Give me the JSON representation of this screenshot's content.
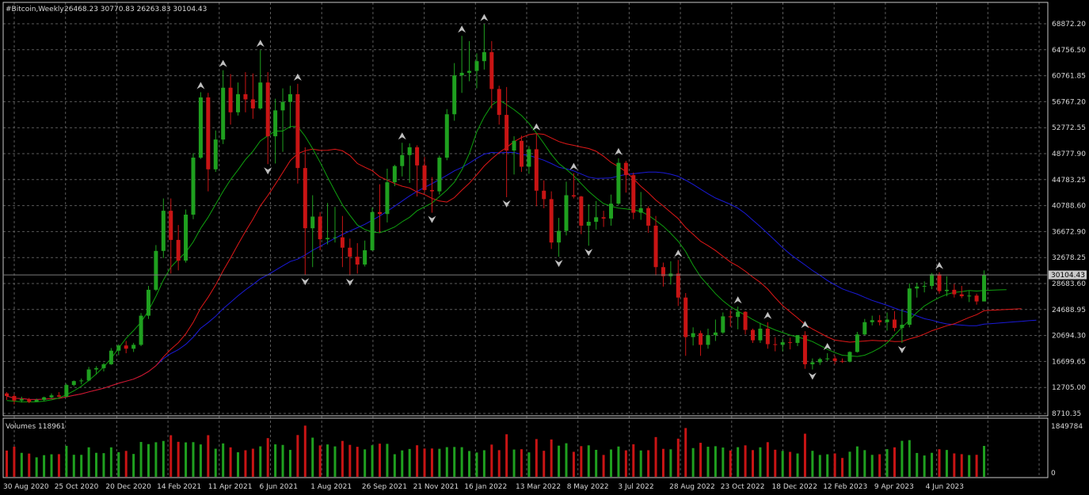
{
  "header": {
    "symbol_label": "#Bitcoin,Weekly",
    "ohlc_text": "26468.23 30770.83 26263.83 30104.43"
  },
  "volume_header": {
    "label": "Volumes 118961"
  },
  "current_price_tag": "30104.43",
  "colors": {
    "background": "#000000",
    "grid": "#5a5a5a",
    "frame": "#c8c8c8",
    "bull": "#1fa01f",
    "bear": "#c81414",
    "ma_fast": "#0fa00f",
    "ma_mid": "#e01818",
    "ma_slow": "#1a1ad8",
    "fractal": "#c0c0c0",
    "text": "#d8d8d8"
  },
  "chart_data": [
    {
      "type": "candlestick",
      "title": "#Bitcoin,Weekly",
      "y_ticks": [
        "68872.20",
        "64756.50",
        "60761.85",
        "56767.20",
        "52772.55",
        "48777.90",
        "44783.25",
        "40788.60",
        "36672.90",
        "32678.25",
        "28683.60",
        "24688.95",
        "20694.30",
        "16699.65",
        "12705.00",
        "8710.35"
      ],
      "x_ticks": [
        "30 Aug 2020",
        "25 Oct 2020",
        "20 Dec 2020",
        "14 Feb 2021",
        "11 Apr 2021",
        "6 Jun 2021",
        "1 Aug 2021",
        "26 Sep 2021",
        "21 Nov 2021",
        "16 Jan 2022",
        "13 Mar 2022",
        "8 May 2022",
        "3 Jul 2022",
        "28 Aug 2022",
        "23 Oct 2022",
        "18 Dec 2022",
        "12 Feb 2023",
        "9 Apr 2023",
        "4 Jun 2023"
      ],
      "ylim": [
        8710.35,
        68872.2
      ],
      "grid": true,
      "ohlc_series": [
        [
          11800,
          12000,
          10800,
          11400
        ],
        [
          11400,
          11700,
          10100,
          10700
        ],
        [
          10700,
          11300,
          10400,
          10900
        ],
        [
          10900,
          11100,
          10300,
          10500
        ],
        [
          10500,
          11000,
          10500,
          10800
        ],
        [
          10800,
          11300,
          10600,
          11200
        ],
        [
          11200,
          11800,
          11000,
          11500
        ],
        [
          11500,
          12000,
          11200,
          11300
        ],
        [
          11300,
          13300,
          11200,
          13100
        ],
        [
          13100,
          13800,
          12900,
          13700
        ],
        [
          13700,
          14100,
          13200,
          13800
        ],
        [
          13800,
          15900,
          13700,
          15500
        ],
        [
          15500,
          16000,
          14700,
          15700
        ],
        [
          15700,
          16500,
          15200,
          16300
        ],
        [
          16300,
          18800,
          16200,
          18400
        ],
        [
          18400,
          19400,
          17700,
          19200
        ],
        [
          19200,
          19900,
          18000,
          18700
        ],
        [
          18700,
          19600,
          18200,
          19300
        ],
        [
          19300,
          24200,
          19100,
          23800
        ],
        [
          23800,
          28400,
          23300,
          27800
        ],
        [
          27800,
          34700,
          27600,
          33800
        ],
        [
          33800,
          41900,
          32700,
          40000
        ],
        [
          40000,
          41900,
          30300,
          35500
        ],
        [
          35500,
          37800,
          30800,
          32300
        ],
        [
          32300,
          40200,
          32000,
          39400
        ],
        [
          39400,
          48900,
          38700,
          48200
        ],
        [
          48200,
          58300,
          48000,
          57500
        ],
        [
          57500,
          58200,
          43000,
          46400
        ],
        [
          46400,
          52400,
          46000,
          51000
        ],
        [
          51000,
          61700,
          50300,
          59000
        ],
        [
          59000,
          61100,
          53300,
          55200
        ],
        [
          55200,
          59800,
          54700,
          58000
        ],
        [
          58000,
          61400,
          55200,
          57200
        ],
        [
          57200,
          61200,
          54200,
          55800
        ],
        [
          55800,
          64800,
          55600,
          59800
        ],
        [
          59800,
          61400,
          47200,
          51500
        ],
        [
          51500,
          57300,
          47300,
          55500
        ],
        [
          55500,
          58900,
          49100,
          56800
        ],
        [
          56800,
          59300,
          52800,
          58000
        ],
        [
          58000,
          59600,
          44200,
          46600
        ],
        [
          46600,
          49800,
          30100,
          37300
        ],
        [
          37300,
          42400,
          31300,
          39100
        ],
        [
          39100,
          39800,
          33900,
          35600
        ],
        [
          35600,
          41200,
          34800,
          35800
        ],
        [
          35800,
          40600,
          35100,
          35900
        ],
        [
          35900,
          39200,
          31300,
          34300
        ],
        [
          34300,
          35700,
          30000,
          32900
        ],
        [
          32900,
          35000,
          30300,
          31700
        ],
        [
          31700,
          35400,
          31400,
          33900
        ],
        [
          33900,
          40500,
          33800,
          39800
        ],
        [
          39800,
          44100,
          36600,
          39500
        ],
        [
          39500,
          46500,
          38200,
          44400
        ],
        [
          44400,
          47100,
          43800,
          46900
        ],
        [
          46900,
          50500,
          45300,
          48600
        ],
        [
          48600,
          50400,
          44300,
          49800
        ],
        [
          49800,
          50100,
          42200,
          47000
        ],
        [
          47000,
          48300,
          42800,
          43200
        ],
        [
          43200,
          45200,
          39700,
          43000
        ],
        [
          43000,
          48500,
          42500,
          48200
        ],
        [
          48200,
          55700,
          47800,
          54900
        ],
        [
          54900,
          62800,
          53900,
          60900
        ],
        [
          60900,
          67000,
          58200,
          61300
        ],
        [
          61300,
          66200,
          60000,
          61600
        ],
        [
          61600,
          64300,
          58900,
          63100
        ],
        [
          63100,
          68800,
          61800,
          64500
        ],
        [
          64500,
          66200,
          55800,
          58800
        ],
        [
          58800,
          59300,
          53300,
          54800
        ],
        [
          54800,
          59100,
          42100,
          49300
        ],
        [
          49300,
          51500,
          45600,
          50800
        ],
        [
          50800,
          51600,
          46000,
          46800
        ],
        [
          46800,
          50000,
          45700,
          49500
        ],
        [
          49500,
          51900,
          40700,
          43100
        ],
        [
          43100,
          44700,
          40400,
          41800
        ],
        [
          41800,
          43000,
          34100,
          35100
        ],
        [
          35100,
          38900,
          32900,
          36900
        ],
        [
          36900,
          44500,
          36200,
          42400
        ],
        [
          42400,
          45800,
          41900,
          42200
        ],
        [
          42200,
          42300,
          36400,
          37700
        ],
        [
          37700,
          41000,
          34600,
          38300
        ],
        [
          38300,
          41500,
          37100,
          39000
        ],
        [
          39000,
          40000,
          37500,
          38800
        ],
        [
          38800,
          42500,
          37700,
          41100
        ],
        [
          41100,
          48100,
          40900,
          47400
        ],
        [
          47400,
          47700,
          42800,
          45500
        ],
        [
          45500,
          45900,
          38700,
          39700
        ],
        [
          39700,
          42900,
          38600,
          40400
        ],
        [
          40400,
          40700,
          36600,
          37700
        ],
        [
          37700,
          39200,
          30000,
          31300
        ],
        [
          31300,
          32000,
          28300,
          29900
        ],
        [
          29900,
          32200,
          28600,
          30300
        ],
        [
          30300,
          32400,
          25300,
          26600
        ],
        [
          26600,
          27300,
          17600,
          20500
        ],
        [
          20500,
          22000,
          19200,
          21100
        ],
        [
          21100,
          21500,
          17600,
          19300
        ],
        [
          19300,
          21800,
          18700,
          20800
        ],
        [
          20800,
          23200,
          19900,
          21200
        ],
        [
          21200,
          24300,
          21000,
          23700
        ],
        [
          23700,
          24600,
          22100,
          23600
        ],
        [
          23600,
          25200,
          21700,
          24400
        ],
        [
          24400,
          24500,
          20900,
          21600
        ],
        [
          21600,
          21800,
          19600,
          20000
        ],
        [
          20000,
          22700,
          19600,
          21800
        ],
        [
          21800,
          22800,
          18700,
          19400
        ],
        [
          19400,
          20500,
          18300,
          19300
        ],
        [
          19300,
          20300,
          18300,
          19700
        ],
        [
          19700,
          20400,
          18600,
          19600
        ],
        [
          19600,
          20700,
          19100,
          20800
        ],
        [
          20800,
          21400,
          15600,
          16300
        ],
        [
          16300,
          17200,
          15500,
          16600
        ],
        [
          16600,
          17300,
          16200,
          17100
        ],
        [
          17100,
          18000,
          16800,
          17200
        ],
        [
          17200,
          17600,
          16300,
          16800
        ],
        [
          16800,
          17200,
          16500,
          16700
        ],
        [
          16700,
          18300,
          16600,
          18200
        ],
        [
          18200,
          21300,
          18100,
          20900
        ],
        [
          20900,
          23300,
          20800,
          22800
        ],
        [
          22800,
          23800,
          22300,
          23100
        ],
        [
          23100,
          23900,
          22300,
          22800
        ],
        [
          22800,
          24300,
          21500,
          23200
        ],
        [
          23200,
          24500,
          21400,
          21900
        ],
        [
          21900,
          24800,
          19600,
          22400
        ],
        [
          22400,
          28800,
          22000,
          28000
        ],
        [
          28000,
          28900,
          26600,
          28300
        ],
        [
          28300,
          29100,
          27400,
          28400
        ],
        [
          28400,
          30400,
          27900,
          30200
        ],
        [
          30200,
          30500,
          27200,
          27600
        ],
        [
          27600,
          29900,
          26800,
          27800
        ],
        [
          27800,
          28700,
          26600,
          27100
        ],
        [
          27100,
          28400,
          26500,
          26800
        ],
        [
          26800,
          27600,
          25900,
          26900
        ],
        [
          26900,
          27200,
          25500,
          26000
        ],
        [
          26000,
          30800,
          26000,
          30100
        ]
      ],
      "ma_fast": [
        10700,
        10600,
        10500,
        10500,
        10500,
        10600,
        10800,
        11100,
        11600,
        12200,
        12900,
        13800,
        14800,
        15900,
        17200,
        18800,
        20300,
        21500,
        22800,
        24600,
        26800,
        29300,
        31300,
        32500,
        33600,
        35200,
        37300,
        39000,
        41000,
        43000,
        44800,
        46300,
        47900,
        49200,
        50800,
        51600,
        52300,
        52300,
        53000,
        53000,
        51500,
        49600,
        47500,
        45200,
        43000,
        40900,
        39300,
        37800,
        37100,
        36700,
        36600,
        37000,
        37500,
        38300,
        39000,
        40000,
        40600,
        41200,
        42200,
        43200,
        44400,
        46300,
        48800,
        52200,
        54500,
        56300,
        57100,
        56400,
        55600,
        54700,
        53500,
        52000,
        50400,
        48700,
        47300,
        46400,
        45400,
        44200,
        43000,
        42000,
        41100,
        40700,
        40400,
        40300,
        40100,
        39900,
        39300,
        38500,
        37600,
        36500,
        35300,
        33700,
        31600,
        29800,
        28500,
        27200,
        26100,
        25200,
        24500,
        23900,
        23200,
        22600,
        22100,
        21600,
        21200,
        20800,
        20500,
        20200,
        19800,
        19200,
        18600,
        18100,
        17700,
        17600,
        17500,
        17700,
        18200,
        18800,
        19600,
        20800,
        22000,
        23100,
        24300,
        25300,
        26000,
        26600,
        27100,
        27400,
        27500,
        27700,
        27600,
        27700
      ]
    },
    {
      "type": "bar",
      "title": "Volumes 118961",
      "ylabel_ticks": [
        "1849784",
        "0"
      ],
      "ylim": [
        0,
        1849784
      ]
    }
  ]
}
